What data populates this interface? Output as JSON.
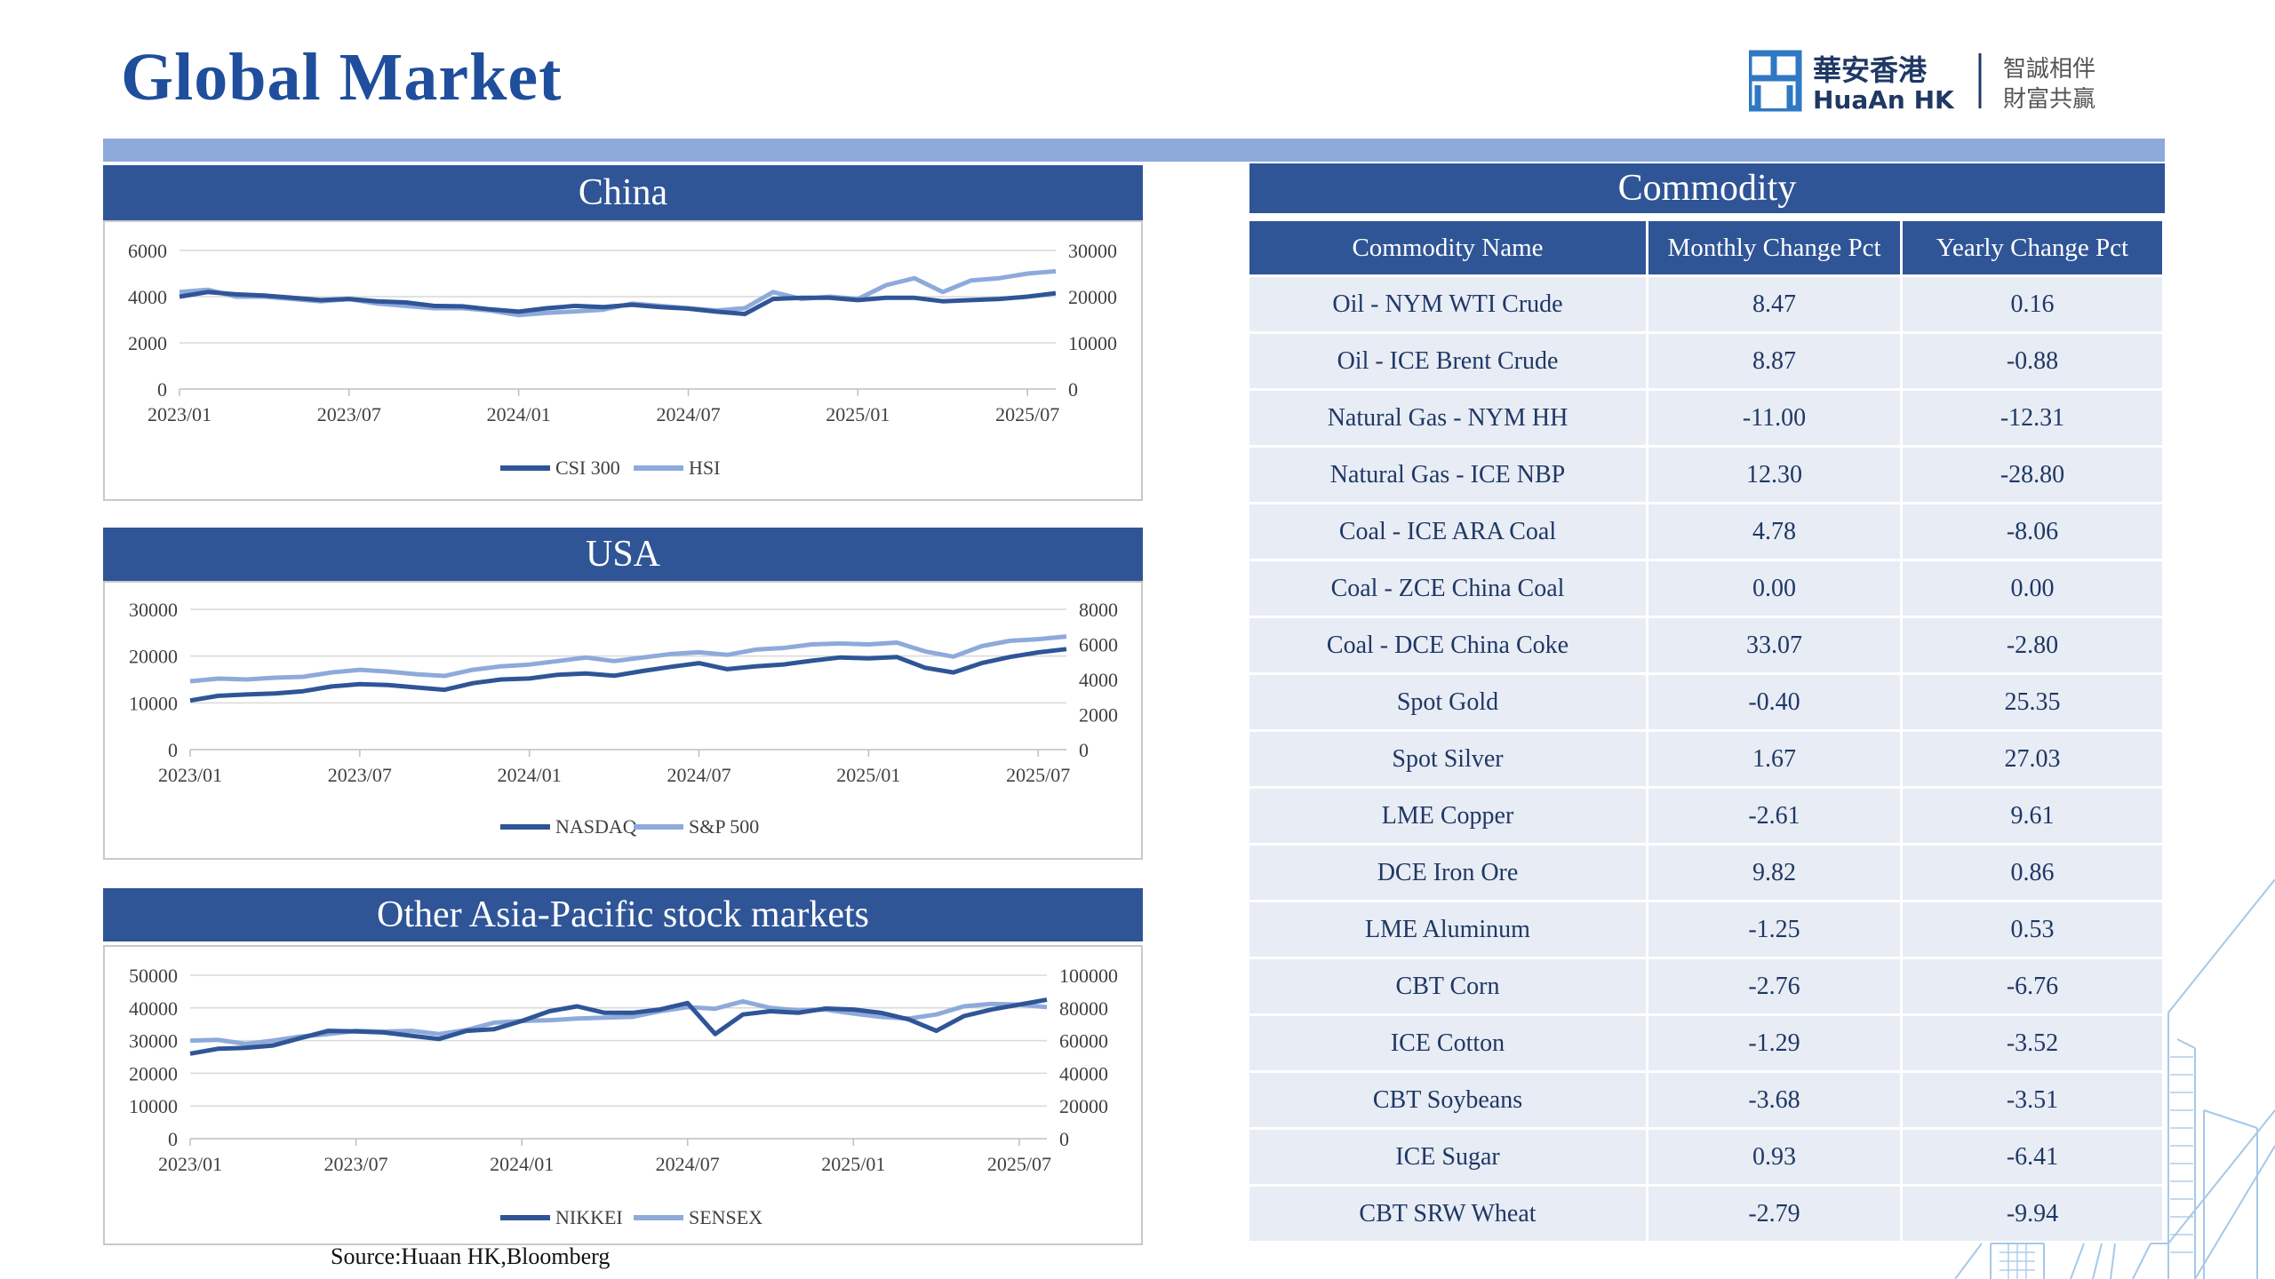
{
  "title": "Global Market",
  "logo": {
    "cn_name": "華安香港",
    "en_name": "HuaAn HK",
    "slogan_line1": "智誠相伴",
    "slogan_line2": "財富共贏"
  },
  "source": "Source:Huaan HK,Bloomberg",
  "charts": {
    "china": {
      "header": "China",
      "chart_data": {
        "type": "line",
        "x_ticks": [
          "2023/01",
          "2023/07",
          "2024/01",
          "2024/07",
          "2025/01",
          "2025/07"
        ],
        "left_axis": {
          "ticks": [
            0,
            2000,
            4000,
            6000
          ],
          "ylim": [
            0,
            6000
          ]
        },
        "right_axis": {
          "ticks": [
            0,
            10000,
            20000,
            30000
          ],
          "ylim": [
            0,
            30000
          ]
        },
        "legend_position": "bottom",
        "series": [
          {
            "name": "CSI 300",
            "axis": "left",
            "color": "#2f5597",
            "x": [
              "2023/01",
              "2023/02",
              "2023/03",
              "2023/04",
              "2023/05",
              "2023/06",
              "2023/07",
              "2023/08",
              "2023/09",
              "2023/10",
              "2023/11",
              "2023/12",
              "2024/01",
              "2024/02",
              "2024/03",
              "2024/04",
              "2024/05",
              "2024/06",
              "2024/07",
              "2024/08",
              "2024/09",
              "2024/10",
              "2024/11",
              "2024/12",
              "2025/01",
              "2025/02",
              "2025/03",
              "2025/04",
              "2025/05",
              "2025/06",
              "2025/07",
              "2025/08"
            ],
            "values": [
              4000,
              4200,
              4100,
              4050,
              3950,
              3850,
              3900,
              3800,
              3750,
              3600,
              3580,
              3450,
              3350,
              3500,
              3600,
              3550,
              3650,
              3550,
              3480,
              3350,
              3250,
              3900,
              3950,
              3950,
              3850,
              3950,
              3950,
              3800,
              3850,
              3900,
              4000,
              4150
            ]
          },
          {
            "name": "HSI",
            "axis": "right",
            "color": "#8eaadb",
            "x": [
              "2023/01",
              "2023/02",
              "2023/03",
              "2023/04",
              "2023/05",
              "2023/06",
              "2023/07",
              "2023/08",
              "2023/09",
              "2023/10",
              "2023/11",
              "2023/12",
              "2024/01",
              "2024/02",
              "2024/03",
              "2024/04",
              "2024/05",
              "2024/06",
              "2024/07",
              "2024/08",
              "2024/09",
              "2024/10",
              "2024/11",
              "2024/12",
              "2025/01",
              "2025/02",
              "2025/03",
              "2025/04",
              "2025/05",
              "2025/06",
              "2025/07",
              "2025/08"
            ],
            "values": [
              21000,
              21500,
              20000,
              20000,
              19500,
              19000,
              19500,
              18500,
              18000,
              17500,
              17500,
              17000,
              16000,
              16500,
              16800,
              17200,
              18500,
              18000,
              17500,
              17000,
              17500,
              21000,
              19500,
              20000,
              19500,
              22500,
              24000,
              21000,
              23500,
              24000,
              25000,
              25500
            ]
          }
        ]
      }
    },
    "usa": {
      "header": "USA",
      "chart_data": {
        "type": "line",
        "x_ticks": [
          "2023/01",
          "2023/07",
          "2024/01",
          "2024/07",
          "2025/01",
          "2025/07"
        ],
        "left_axis": {
          "ticks": [
            0,
            10000,
            20000,
            30000
          ],
          "ylim": [
            0,
            30000
          ]
        },
        "right_axis": {
          "ticks": [
            0,
            2000,
            4000,
            6000,
            8000
          ],
          "ylim": [
            0,
            8000
          ]
        },
        "legend_position": "bottom",
        "series": [
          {
            "name": "NASDAQ",
            "axis": "left",
            "color": "#2f5597",
            "x": [
              "2023/01",
              "2023/02",
              "2023/03",
              "2023/04",
              "2023/05",
              "2023/06",
              "2023/07",
              "2023/08",
              "2023/09",
              "2023/10",
              "2023/11",
              "2023/12",
              "2024/01",
              "2024/02",
              "2024/03",
              "2024/04",
              "2024/05",
              "2024/06",
              "2024/07",
              "2024/08",
              "2024/09",
              "2024/10",
              "2024/11",
              "2024/12",
              "2025/01",
              "2025/02",
              "2025/03",
              "2025/04",
              "2025/05",
              "2025/06",
              "2025/07",
              "2025/08"
            ],
            "values": [
              10500,
              11500,
              11800,
              12000,
              12500,
              13500,
              14000,
              13800,
              13300,
              12800,
              14200,
              15000,
              15200,
              16000,
              16300,
              15800,
              16800,
              17700,
              18500,
              17200,
              17800,
              18200,
              19000,
              19700,
              19500,
              19800,
              17500,
              16500,
              18500,
              19800,
              20800,
              21500
            ]
          },
          {
            "name": "S&P 500",
            "axis": "right",
            "color": "#8eaadb",
            "x": [
              "2023/01",
              "2023/02",
              "2023/03",
              "2023/04",
              "2023/05",
              "2023/06",
              "2023/07",
              "2023/08",
              "2023/09",
              "2023/10",
              "2023/11",
              "2023/12",
              "2024/01",
              "2024/02",
              "2024/03",
              "2024/04",
              "2024/05",
              "2024/06",
              "2024/07",
              "2024/08",
              "2024/09",
              "2024/10",
              "2024/11",
              "2024/12",
              "2025/01",
              "2025/02",
              "2025/03",
              "2025/04",
              "2025/05",
              "2025/06",
              "2025/07",
              "2025/08"
            ],
            "values": [
              3900,
              4050,
              4000,
              4100,
              4150,
              4400,
              4550,
              4450,
              4300,
              4200,
              4550,
              4750,
              4850,
              5050,
              5250,
              5050,
              5250,
              5450,
              5550,
              5400,
              5700,
              5800,
              6000,
              6050,
              6000,
              6100,
              5600,
              5300,
              5900,
              6200,
              6300,
              6450
            ]
          }
        ]
      }
    },
    "asia": {
      "header": "Other Asia-Pacific stock markets",
      "chart_data": {
        "type": "line",
        "x_ticks": [
          "2023/01",
          "2023/07",
          "2024/01",
          "2024/07",
          "2025/01",
          "2025/07"
        ],
        "left_axis": {
          "ticks": [
            0,
            10000,
            20000,
            30000,
            40000,
            50000
          ],
          "ylim": [
            0,
            50000
          ]
        },
        "right_axis": {
          "ticks": [
            0,
            20000,
            40000,
            60000,
            80000,
            100000
          ],
          "ylim": [
            0,
            100000
          ]
        },
        "legend_position": "bottom",
        "series": [
          {
            "name": "NIKKEI",
            "axis": "left",
            "color": "#2f5597",
            "x": [
              "2023/01",
              "2023/02",
              "2023/03",
              "2023/04",
              "2023/05",
              "2023/06",
              "2023/07",
              "2023/08",
              "2023/09",
              "2023/10",
              "2023/11",
              "2023/12",
              "2024/01",
              "2024/02",
              "2024/03",
              "2024/04",
              "2024/05",
              "2024/06",
              "2024/07",
              "2024/08",
              "2024/09",
              "2024/10",
              "2024/11",
              "2024/12",
              "2025/01",
              "2025/02",
              "2025/03",
              "2025/04",
              "2025/05",
              "2025/06",
              "2025/07",
              "2025/08"
            ],
            "values": [
              26000,
              27500,
              27800,
              28500,
              30800,
              33000,
              32800,
              32500,
              31500,
              30500,
              33000,
              33500,
              36000,
              39000,
              40500,
              38500,
              38500,
              39500,
              41500,
              32000,
              38000,
              39000,
              38500,
              39800,
              39500,
              38500,
              36500,
              33000,
              37500,
              39500,
              41000,
              42500
            ]
          },
          {
            "name": "SENSEX",
            "axis": "right",
            "color": "#8eaadb",
            "x": [
              "2023/01",
              "2023/02",
              "2023/03",
              "2023/04",
              "2023/05",
              "2023/06",
              "2023/07",
              "2023/08",
              "2023/09",
              "2023/10",
              "2023/11",
              "2023/12",
              "2024/01",
              "2024/02",
              "2024/03",
              "2024/04",
              "2024/05",
              "2024/06",
              "2024/07",
              "2024/08",
              "2024/09",
              "2024/10",
              "2024/11",
              "2024/12",
              "2025/01",
              "2025/02",
              "2025/03",
              "2025/04",
              "2025/05",
              "2025/06",
              "2025/07",
              "2025/08"
            ],
            "values": [
              60000,
              60500,
              58000,
              60000,
              62500,
              64000,
              66000,
              65500,
              66000,
              64000,
              66500,
              71000,
              72000,
              72500,
              73500,
              74000,
              74500,
              78000,
              80500,
              79500,
              84000,
              80000,
              78500,
              79000,
              76500,
              74500,
              73500,
              76000,
              81000,
              82500,
              82000,
              80500
            ]
          }
        ]
      }
    }
  },
  "commodity": {
    "header": "Commodity",
    "columns": [
      "Commodity Name",
      "Monthly Change Pct",
      "Yearly Change Pct"
    ],
    "rows": [
      [
        "Oil - NYM WTI Crude",
        "8.47",
        "0.16"
      ],
      [
        "Oil - ICE Brent Crude",
        "8.87",
        "-0.88"
      ],
      [
        "Natural Gas - NYM HH",
        "-11.00",
        "-12.31"
      ],
      [
        "Natural Gas - ICE NBP",
        "12.30",
        "-28.80"
      ],
      [
        "Coal - ICE ARA Coal",
        "4.78",
        "-8.06"
      ],
      [
        "Coal - ZCE China Coal",
        "0.00",
        "0.00"
      ],
      [
        "Coal - DCE China Coke",
        "33.07",
        "-2.80"
      ],
      [
        "Spot Gold",
        "-0.40",
        "25.35"
      ],
      [
        "Spot Silver",
        "1.67",
        "27.03"
      ],
      [
        "LME Copper",
        "-2.61",
        "9.61"
      ],
      [
        "DCE Iron Ore",
        "9.82",
        "0.86"
      ],
      [
        "LME Aluminum",
        "-1.25",
        "0.53"
      ],
      [
        "CBT Corn",
        "-2.76",
        "-6.76"
      ],
      [
        "ICE Cotton",
        "-1.29",
        "-3.52"
      ],
      [
        "CBT Soybeans",
        "-3.68",
        "-3.51"
      ],
      [
        "ICE Sugar",
        "0.93",
        "-6.41"
      ],
      [
        "CBT SRW Wheat",
        "-2.79",
        "-9.94"
      ]
    ]
  }
}
